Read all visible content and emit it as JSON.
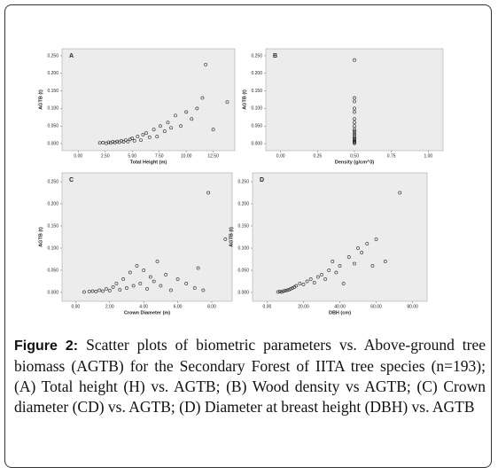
{
  "chart_data": [
    {
      "type": "scatter",
      "panel": "A",
      "xlabel": "Total Height (m)",
      "ylabel": "AGTB (t)",
      "xlim": [
        -1.5,
        14.5
      ],
      "ylim": [
        -0.02,
        0.27
      ],
      "xticks": [
        {
          "value": 0,
          "label": "0.00"
        },
        {
          "value": 2.5,
          "label": "2.50"
        },
        {
          "value": 5,
          "label": "5.00"
        },
        {
          "value": 7.5,
          "label": "7.50"
        },
        {
          "value": 10,
          "label": "10.00"
        },
        {
          "value": 12.5,
          "label": "12.50"
        }
      ],
      "yticks": [
        {
          "value": 0,
          "label": "0.000"
        },
        {
          "value": 0.05,
          "label": "0.050"
        },
        {
          "value": 0.1,
          "label": "0.100"
        },
        {
          "value": 0.15,
          "label": "0.150"
        },
        {
          "value": 0.2,
          "label": "0.200"
        },
        {
          "value": 0.25,
          "label": "0.250"
        }
      ],
      "x": [
        2,
        2.3,
        2.6,
        2.8,
        3,
        3.2,
        3.4,
        3.6,
        3.8,
        4,
        4.2,
        4.4,
        4.6,
        4.8,
        5,
        5.2,
        5.5,
        5.8,
        6,
        6.3,
        6.6,
        7,
        7.3,
        7.6,
        8,
        8.3,
        8.6,
        9,
        9.5,
        10,
        10.5,
        11,
        11.5,
        11.8,
        12.5,
        13.8
      ],
      "values": [
        0.002,
        0.003,
        0.001,
        0.004,
        0.002,
        0.005,
        0.003,
        0.006,
        0.004,
        0.008,
        0.005,
        0.01,
        0.006,
        0.012,
        0.015,
        0.008,
        0.02,
        0.01,
        0.025,
        0.03,
        0.018,
        0.04,
        0.02,
        0.05,
        0.035,
        0.06,
        0.045,
        0.08,
        0.05,
        0.09,
        0.07,
        0.1,
        0.13,
        0.225,
        0.04,
        0.118
      ]
    },
    {
      "type": "scatter",
      "panel": "B",
      "xlabel": "Density (g/cm^3)",
      "ylabel": "AGTB (t)",
      "xlim": [
        -0.1,
        1.1
      ],
      "ylim": [
        -0.02,
        0.27
      ],
      "xticks": [
        {
          "value": 0,
          "label": "0.00"
        },
        {
          "value": 0.25,
          "label": "0.25"
        },
        {
          "value": 0.5,
          "label": "0.50"
        },
        {
          "value": 0.75,
          "label": "0.75"
        },
        {
          "value": 1,
          "label": "1.00"
        }
      ],
      "yticks": [
        {
          "value": 0,
          "label": "0.000"
        },
        {
          "value": 0.05,
          "label": "0.050"
        },
        {
          "value": 0.1,
          "label": "0.100"
        },
        {
          "value": 0.15,
          "label": "0.150"
        },
        {
          "value": 0.2,
          "label": "0.200"
        },
        {
          "value": 0.25,
          "label": "0.250"
        }
      ],
      "x": [
        0.5,
        0.5,
        0.5,
        0.5,
        0.5,
        0.5,
        0.5,
        0.5,
        0.5,
        0.5,
        0.5,
        0.5,
        0.5,
        0.5,
        0.5,
        0.5,
        0.5,
        0.5,
        0.5,
        0.5
      ],
      "values": [
        0.001,
        0.003,
        0.005,
        0.008,
        0.01,
        0.013,
        0.016,
        0.02,
        0.025,
        0.03,
        0.035,
        0.04,
        0.05,
        0.06,
        0.07,
        0.09,
        0.1,
        0.12,
        0.13,
        0.238
      ]
    },
    {
      "type": "scatter",
      "panel": "C",
      "xlabel": "Crown Diameter (m)",
      "ylabel": "AGTB (t)",
      "xlim": [
        -0.8,
        9.2
      ],
      "ylim": [
        -0.02,
        0.27
      ],
      "xticks": [
        {
          "value": 0,
          "label": "0.00"
        },
        {
          "value": 2,
          "label": "2.00"
        },
        {
          "value": 4,
          "label": "4.00"
        },
        {
          "value": 6,
          "label": "6.00"
        },
        {
          "value": 8,
          "label": "8.00"
        }
      ],
      "yticks": [
        {
          "value": 0,
          "label": "0.000"
        },
        {
          "value": 0.05,
          "label": "0.050"
        },
        {
          "value": 0.1,
          "label": "0.100"
        },
        {
          "value": 0.15,
          "label": "0.150"
        },
        {
          "value": 0.2,
          "label": "0.200"
        },
        {
          "value": 0.25,
          "label": "0.250"
        }
      ],
      "x": [
        0.5,
        0.8,
        1,
        1.2,
        1.4,
        1.6,
        1.8,
        2,
        2.2,
        2.4,
        2.6,
        2.8,
        3,
        3.2,
        3.4,
        3.6,
        3.8,
        4,
        4.2,
        4.4,
        4.6,
        4.8,
        5,
        5.3,
        5.6,
        6,
        6.5,
        7,
        7.2,
        7.5,
        7.8,
        8.8
      ],
      "values": [
        0.001,
        0.002,
        0.003,
        0.002,
        0.005,
        0.003,
        0.008,
        0.004,
        0.012,
        0.02,
        0.006,
        0.03,
        0.01,
        0.045,
        0.015,
        0.06,
        0.02,
        0.05,
        0.008,
        0.035,
        0.025,
        0.07,
        0.015,
        0.04,
        0.005,
        0.03,
        0.02,
        0.01,
        0.055,
        0.005,
        0.225,
        0.12
      ]
    },
    {
      "type": "scatter",
      "panel": "D",
      "xlabel": "DBH (cm)",
      "ylabel": "AGTB (t)",
      "xlim": [
        -8,
        88
      ],
      "ylim": [
        -0.02,
        0.27
      ],
      "xticks": [
        {
          "value": 0,
          "label": "0.00"
        },
        {
          "value": 20,
          "label": "20.00"
        },
        {
          "value": 40,
          "label": "40.00"
        },
        {
          "value": 60,
          "label": "60.00"
        },
        {
          "value": 80,
          "label": "80.00"
        }
      ],
      "yticks": [
        {
          "value": 0,
          "label": "0.000"
        },
        {
          "value": 0.05,
          "label": "0.050"
        },
        {
          "value": 0.1,
          "label": "0.100"
        },
        {
          "value": 0.15,
          "label": "0.150"
        },
        {
          "value": 0.2,
          "label": "0.200"
        },
        {
          "value": 0.25,
          "label": "0.250"
        }
      ],
      "x": [
        6,
        7,
        8,
        9,
        10,
        11,
        12,
        13,
        14,
        15,
        16,
        18,
        20,
        22,
        24,
        26,
        28,
        30,
        32,
        34,
        36,
        38,
        40,
        42,
        45,
        48,
        50,
        52,
        55,
        58,
        60,
        65,
        73
      ],
      "values": [
        0.001,
        0.002,
        0.001,
        0.003,
        0.004,
        0.005,
        0.006,
        0.008,
        0.01,
        0.012,
        0.015,
        0.02,
        0.018,
        0.025,
        0.03,
        0.022,
        0.035,
        0.04,
        0.03,
        0.05,
        0.07,
        0.045,
        0.06,
        0.02,
        0.08,
        0.065,
        0.1,
        0.09,
        0.11,
        0.06,
        0.12,
        0.07,
        0.225
      ]
    }
  ],
  "caption": {
    "label": "Figure 2:",
    "text": "Scatter plots of biometric parameters vs. Above-ground tree biomass (AGTB) for the Secondary Forest of IITA tree species (n=193); (A) Total height (H) vs. AGTB; (B) Wood density vs AGTB; (C) Crown diameter (CD) vs. AGTB; (D) Diameter at breast height (DBH) vs. AGTB"
  }
}
